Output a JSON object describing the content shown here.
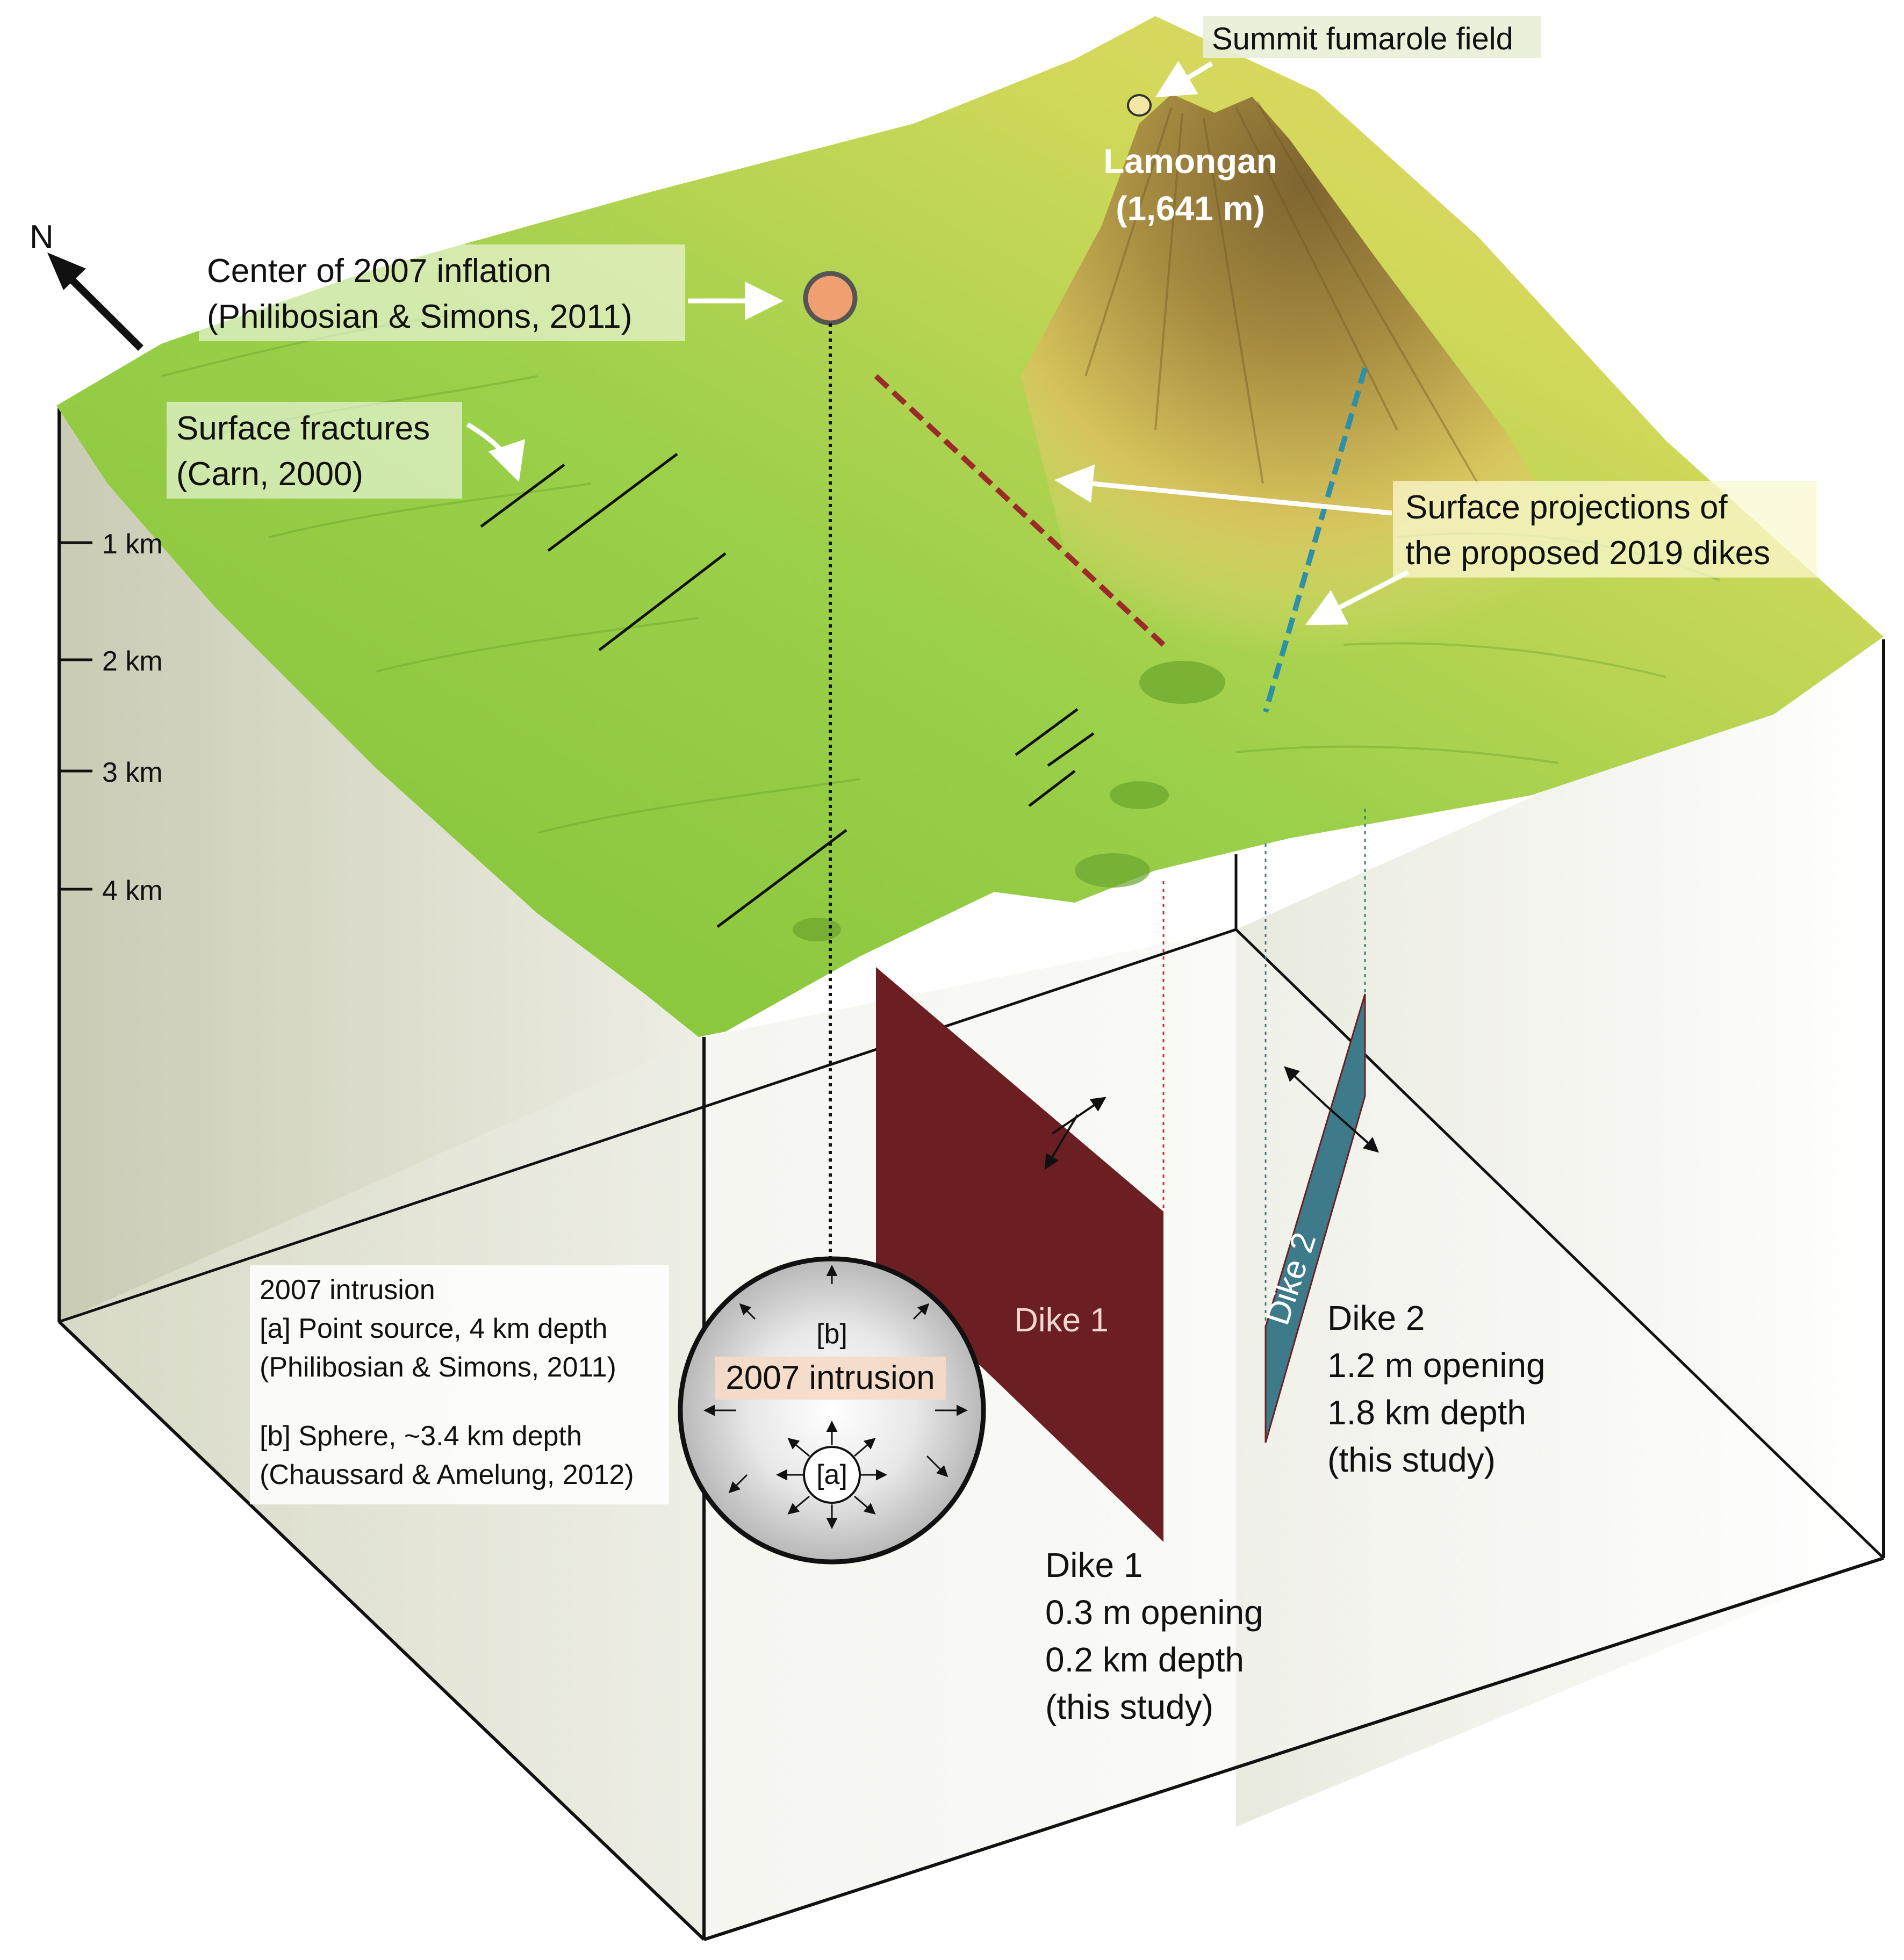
{
  "compass": {
    "label": "N"
  },
  "depth_scale": [
    "1 km",
    "2 km",
    "3 km",
    "4 km"
  ],
  "summit": {
    "fumarole_label": "Summit fumarole field",
    "volcano_name": "Lamongan",
    "volcano_elevation": "(1,641 m)"
  },
  "inflation_label": {
    "line1": "Center of 2007 inflation",
    "line2": "(Philibosian & Simons, 2011)"
  },
  "fractures_label": {
    "line1": "Surface fractures",
    "line2": "(Carn, 2000)"
  },
  "projections_label": {
    "line1": "Surface projections of",
    "line2": "the proposed 2019 dikes"
  },
  "intrusion_legend": {
    "line1": "2007 intrusion",
    "line2": "[a] Point source, 4 km depth",
    "line3": "(Philibosian & Simons, 2011)",
    "line4": "[b] Sphere, ~3.4 km depth",
    "line5": "(Chaussard & Amelung, 2012)"
  },
  "sphere": {
    "b_label": "[b]",
    "title": "2007 intrusion",
    "a_label": "[a]"
  },
  "dike1": {
    "panel_label": "Dike 1",
    "name": "Dike 1",
    "opening": "0.3 m opening",
    "depth": "0.2 km depth",
    "source": "(this study)"
  },
  "dike2": {
    "panel_label": "Dike 2",
    "name": "Dike 2",
    "opening": "1.2 m opening",
    "depth": "1.8 km depth",
    "source": "(this study)"
  },
  "colors": {
    "terrain_low": "#8fc93a",
    "terrain_high": "#f0e07a",
    "volcano": "#9a7a3e",
    "dike1": "#6b1f22",
    "dike2": "#3d7a8a",
    "dike1_projection": "#9b2a2a",
    "dike2_projection": "#2f8fa6",
    "inflation_marker": "#f0a070"
  }
}
